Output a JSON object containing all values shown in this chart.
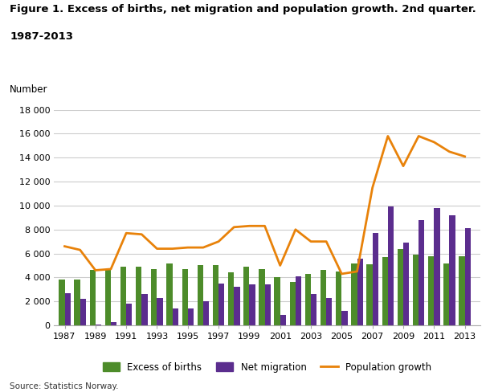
{
  "years": [
    1987,
    1988,
    1989,
    1990,
    1991,
    1992,
    1993,
    1994,
    1995,
    1996,
    1997,
    1998,
    1999,
    2000,
    2001,
    2002,
    2003,
    2004,
    2005,
    2006,
    2007,
    2008,
    2009,
    2010,
    2011,
    2012,
    2013
  ],
  "excess_births": [
    3800,
    3800,
    4600,
    4600,
    4900,
    4900,
    4700,
    5200,
    4700,
    5000,
    5000,
    4400,
    4900,
    4700,
    4000,
    3600,
    4300,
    4600,
    4500,
    5200,
    5100,
    5700,
    6400,
    5900,
    5800,
    5200,
    5800
  ],
  "net_migration": [
    2700,
    2200,
    100,
    300,
    1800,
    2600,
    2300,
    1400,
    1400,
    2000,
    3500,
    3200,
    3400,
    3400,
    900,
    4100,
    2600,
    2300,
    1200,
    5600,
    7700,
    9900,
    6900,
    8800,
    9800,
    9200,
    8100
  ],
  "population_growth": [
    6600,
    6300,
    4600,
    4700,
    7700,
    7600,
    6400,
    6400,
    6500,
    6500,
    7000,
    8200,
    8300,
    8300,
    5000,
    8000,
    7000,
    7000,
    4300,
    4500,
    11500,
    15800,
    13300,
    15800,
    15300,
    14500,
    14100
  ],
  "bar_color_births": "#4d8c2a",
  "bar_color_migration": "#5b2d8e",
  "line_color": "#e8820a",
  "title_line1": "Figure 1. Excess of births, net migration and population growth. 2nd quarter.",
  "title_line2": "1987-2013",
  "ylabel_text": "Number",
  "ylim": [
    0,
    18000
  ],
  "yticks": [
    0,
    2000,
    4000,
    6000,
    8000,
    10000,
    12000,
    14000,
    16000,
    18000
  ],
  "xtick_years": [
    1987,
    1989,
    1991,
    1993,
    1995,
    1997,
    1999,
    2001,
    2003,
    2005,
    2007,
    2009,
    2011,
    2013
  ],
  "legend_labels": [
    "Excess of births",
    "Net migration",
    "Population growth"
  ],
  "source_text": "Source: Statistics Norway.",
  "background_color": "#ffffff",
  "grid_color": "#cccccc"
}
